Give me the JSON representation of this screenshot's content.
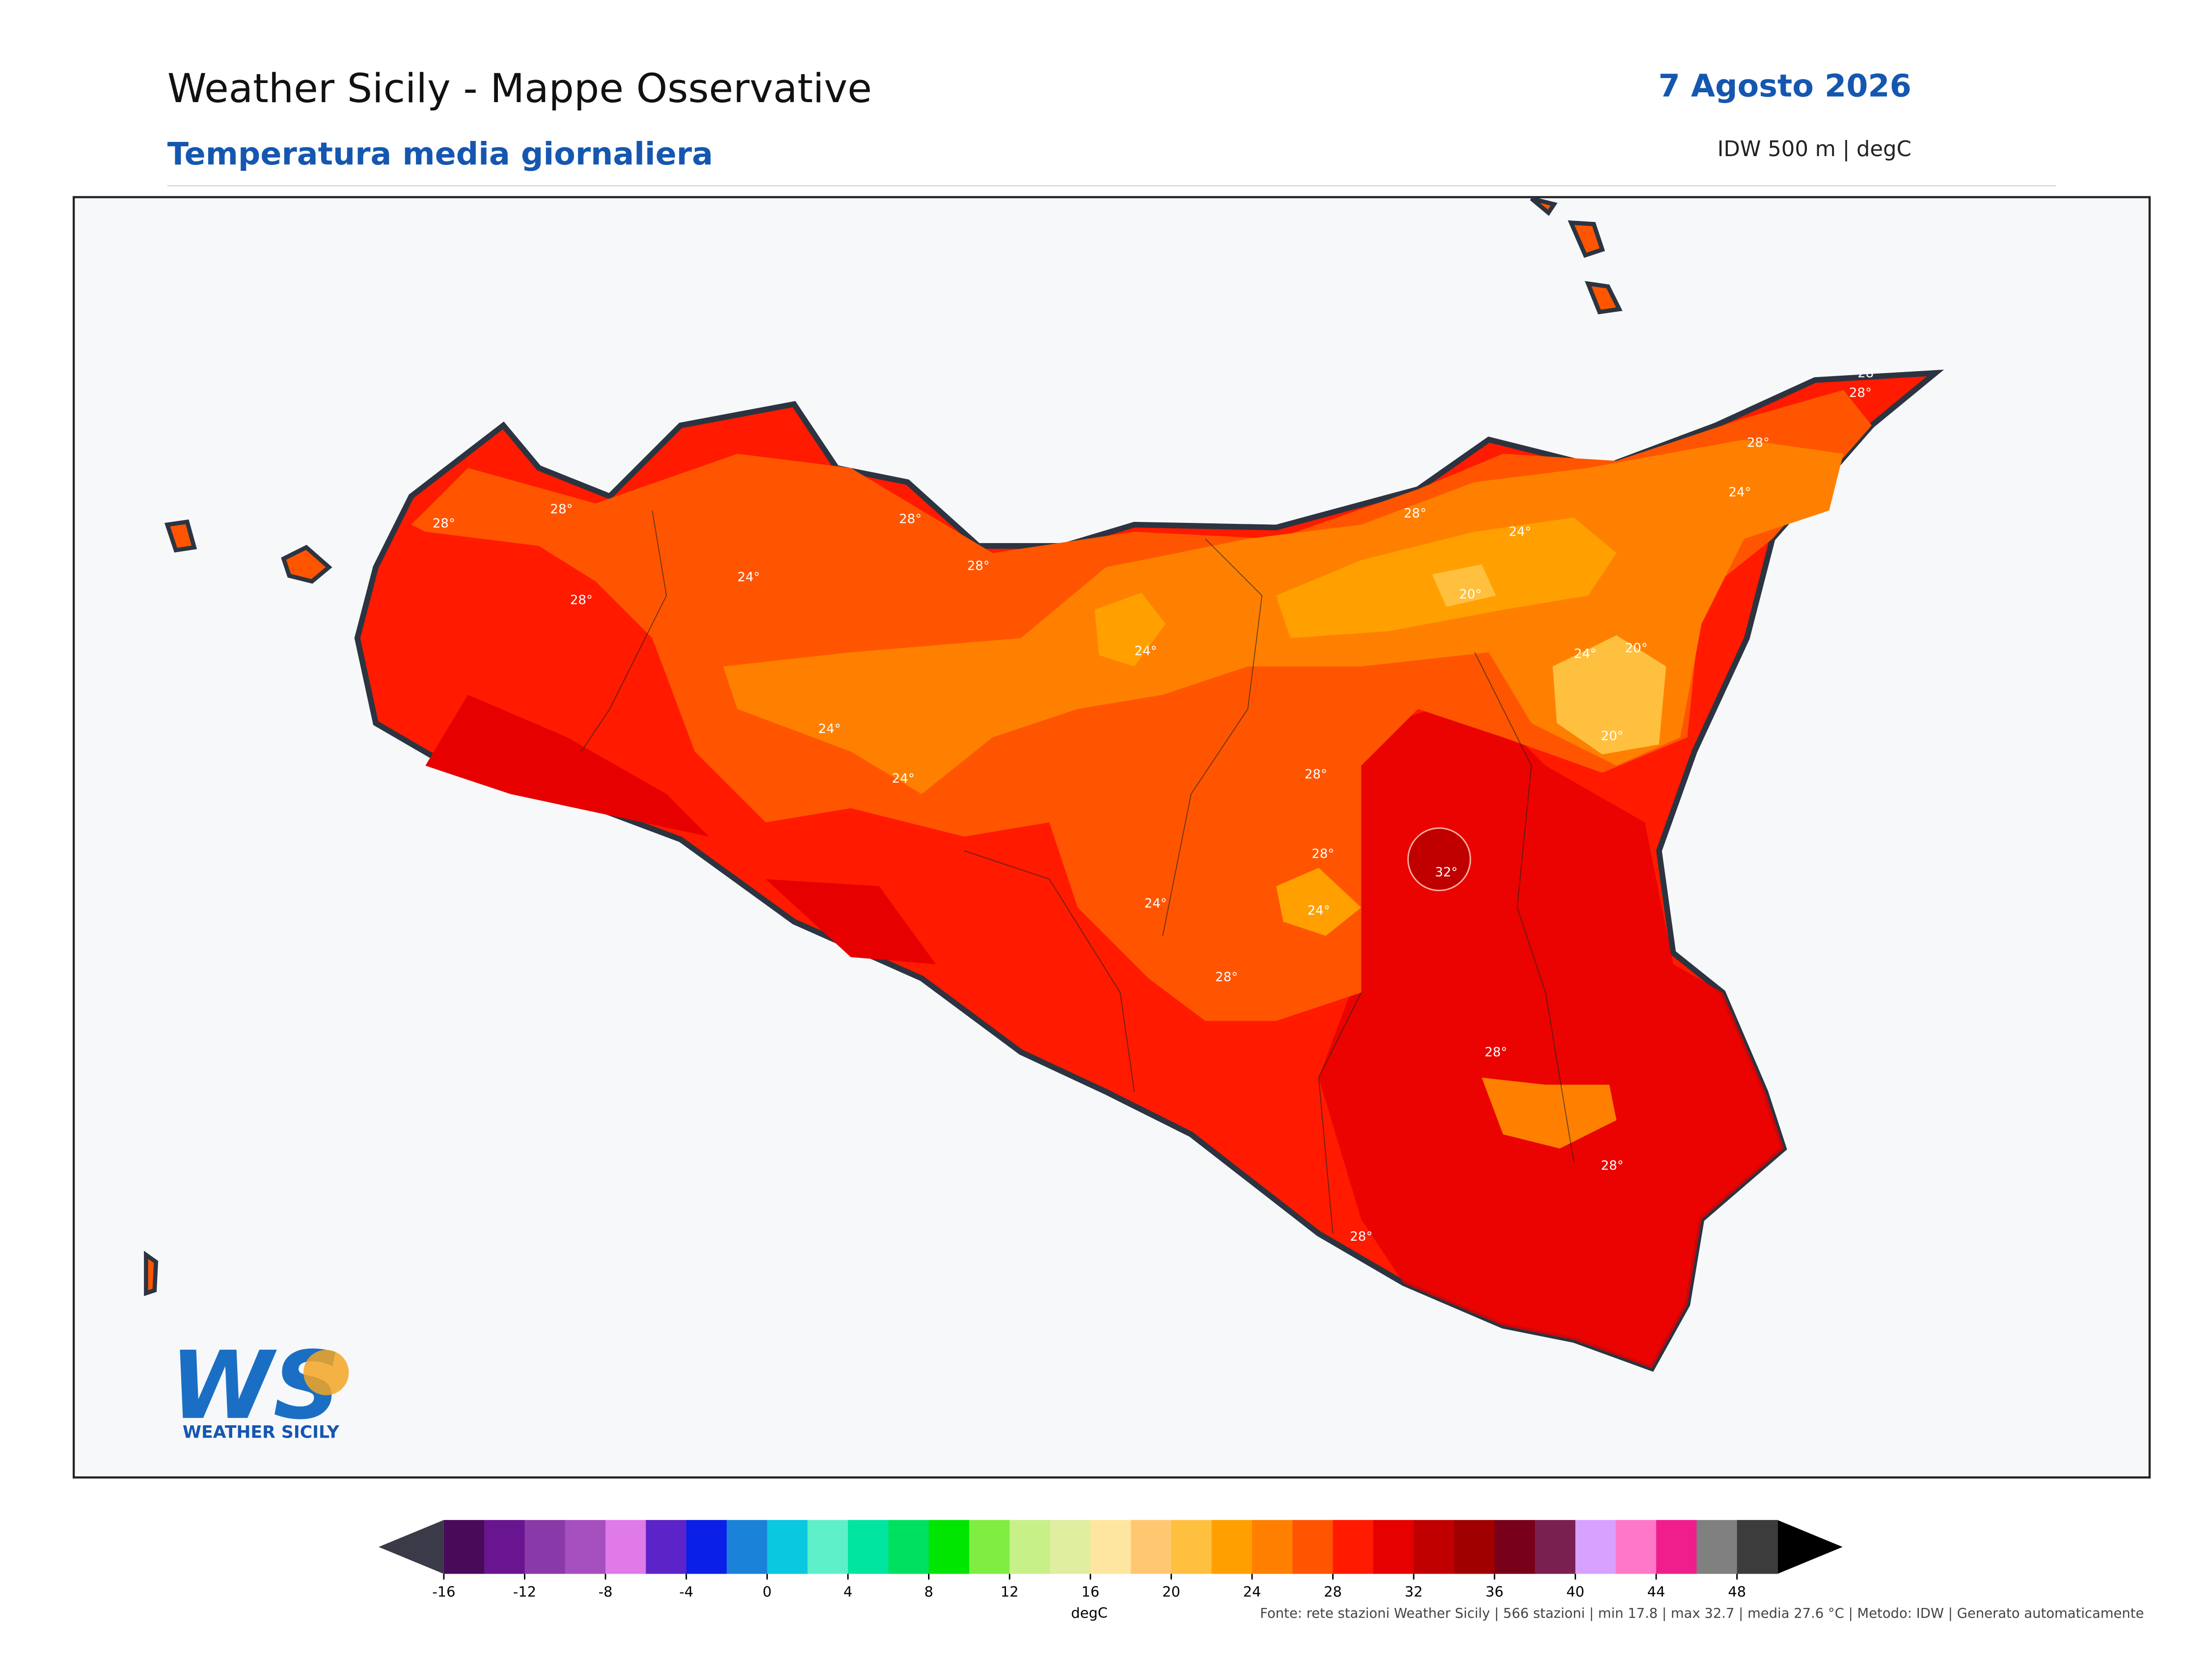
{
  "header": {
    "title": "Weather Sicily - Mappe Osservative",
    "subtitle": "Temperatura media giornaliera",
    "date": "7 Agosto 2026",
    "method": "IDW 500 m | degC"
  },
  "map": {
    "contour_labels": [
      "28°",
      "28°",
      "28°",
      "28°",
      "28°",
      "28°",
      "28°",
      "28°",
      "28°",
      "28°",
      "28°",
      "28°",
      "28°",
      "24°",
      "24°",
      "24°",
      "24°",
      "24°",
      "24°",
      "24°",
      "24°",
      "24°",
      "20°",
      "20°",
      "20°",
      "28°",
      "28°",
      "32°"
    ]
  },
  "logo": {
    "mark": "WS",
    "name": "WEATHER SICILY"
  },
  "colorbar": {
    "label": "degC",
    "ticks": [
      -16,
      -12,
      -8,
      -4,
      0,
      4,
      8,
      12,
      16,
      20,
      24,
      28,
      32,
      36,
      40,
      44,
      48
    ],
    "lim": [
      -16,
      48
    ],
    "step": 2,
    "colors": [
      "#4a0a5a",
      "#6a1590",
      "#8a3aa8",
      "#a64fbf",
      "#e07ae8",
      "#5b23c8",
      "#0a1fe8",
      "#1a82d8",
      "#0ac8e0",
      "#5ef0c8",
      "#00e6a0",
      "#00e060",
      "#00e600",
      "#80ee40",
      "#c8f088",
      "#e0eea0",
      "#ffe6a0",
      "#ffc870",
      "#ffc040",
      "#ffa000",
      "#ff8000",
      "#ff5500",
      "#ff1a00",
      "#e60000",
      "#c00000",
      "#a00000",
      "#780018",
      "#7a2050",
      "#d8a0ff",
      "#ff78c8",
      "#f01e8c",
      "#808080",
      "#3c3c3c"
    ],
    "under_color": "#3a3a48",
    "over_color": "#000000"
  },
  "footer": {
    "source": "Fonte: rete stazioni Weather Sicily | 566 stazioni | min 17.8 | max 32.7 | media 27.6 °C | Metodo: IDW | Generato automaticamente"
  }
}
